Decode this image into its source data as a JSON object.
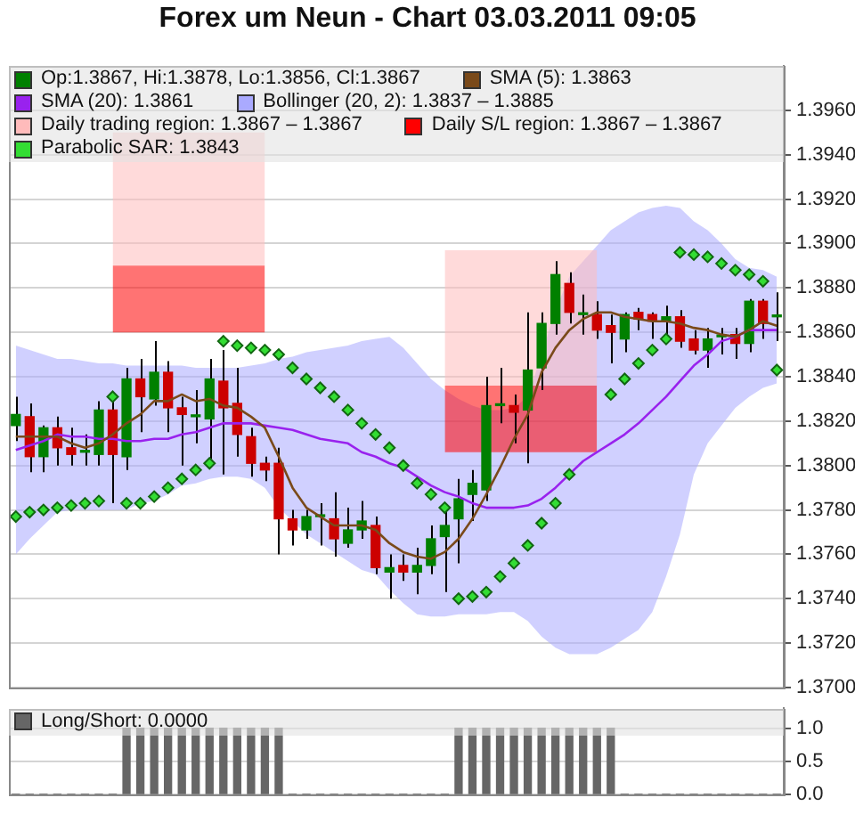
{
  "chart_data": [
    {
      "type": "candlestick",
      "title": "Forex um Neun - Chart 03.03.2011 09:05",
      "categories": [
        null,
        null,
        null,
        null,
        null,
        null,
        null,
        null,
        null,
        null,
        null,
        null,
        null,
        null,
        null,
        null,
        null,
        null,
        null,
        null,
        null,
        null,
        null,
        null,
        null,
        null,
        null,
        null,
        null,
        null,
        null,
        null,
        null,
        null,
        null,
        null,
        null,
        null,
        null,
        null,
        null,
        null,
        null,
        null,
        null,
        null,
        null,
        null,
        null,
        null,
        null,
        null,
        null,
        null,
        null,
        null
      ],
      "series": [
        {
          "name": "Op:1.3867, Hi:1.3878, Lo:1.3856, Cl:1.3867",
          "type": "candlestick",
          "color": "#008000",
          "colors": [
            "#008000",
            "#cc0000",
            "#008000",
            "#cc0000",
            "#cc0000",
            "#008000",
            "#008000",
            "#cc0000",
            "#008000",
            "#cc0000",
            "#008000",
            "#cc0000",
            "#cc0000",
            "#008000",
            "#008000",
            "#cc0000",
            "#cc0000",
            "#cc0000",
            "#cc0000",
            "#cc0000",
            "#cc0000",
            "#008000",
            "#008000",
            "#cc0000",
            "#008000",
            "#008000",
            "#cc0000",
            "#008000",
            "#cc0000",
            "#008000",
            "#008000",
            "#008000",
            "#008000",
            "#008000",
            "#008000",
            "#008000",
            "#cc0000",
            "#008000",
            "#008000",
            "#008000",
            "#cc0000",
            "#008000",
            "#cc0000",
            "#cc0000",
            "#008000",
            "#cc0000",
            "#cc0000",
            "#008000",
            "#cc0000",
            "#cc0000",
            "#008000",
            "#008000",
            "#cc0000",
            "#008000",
            "#cc0000",
            "#008000"
          ],
          "ohlc": [
            [
              1.3818,
              1.3831,
              1.3811,
              1.3823
            ],
            [
              1.3822,
              1.3828,
              1.3797,
              1.3804
            ],
            [
              1.3804,
              1.3818,
              1.3797,
              1.3817
            ],
            [
              1.3817,
              1.3822,
              1.38,
              1.3808
            ],
            [
              1.3808,
              1.3817,
              1.38,
              1.3805
            ],
            [
              1.3806,
              1.3814,
              1.38,
              1.3806
            ],
            [
              1.3805,
              1.3829,
              1.38,
              1.3825
            ],
            [
              1.3825,
              1.3831,
              1.3783,
              1.3805
            ],
            [
              1.3804,
              1.3844,
              1.3798,
              1.3839
            ],
            [
              1.3839,
              1.3848,
              1.3815,
              1.3831
            ],
            [
              1.383,
              1.3856,
              1.3827,
              1.3842
            ],
            [
              1.3842,
              1.3847,
              1.3815,
              1.3826
            ],
            [
              1.3826,
              1.3831,
              1.38,
              1.3823
            ],
            [
              1.3822,
              1.3834,
              1.381,
              1.3822
            ],
            [
              1.3821,
              1.3848,
              1.3803,
              1.3839
            ],
            [
              1.3838,
              1.3852,
              1.3796,
              1.3826
            ],
            [
              1.3828,
              1.3844,
              1.3804,
              1.3814
            ],
            [
              1.3813,
              1.3817,
              1.3795,
              1.3801
            ],
            [
              1.3801,
              1.3804,
              1.3793,
              1.3798
            ],
            [
              1.3801,
              1.3808,
              1.376,
              1.3776
            ],
            [
              1.3776,
              1.378,
              1.3764,
              1.3771
            ],
            [
              1.3771,
              1.378,
              1.3767,
              1.3777
            ],
            [
              1.3777,
              1.3783,
              1.3764,
              1.3777
            ],
            [
              1.3776,
              1.3788,
              1.3759,
              1.3767
            ],
            [
              1.3765,
              1.3781,
              1.3763,
              1.3771
            ],
            [
              1.3771,
              1.3784,
              1.3767,
              1.3775
            ],
            [
              1.3773,
              1.3777,
              1.3751,
              1.3754
            ],
            [
              1.3752,
              1.376,
              1.374,
              1.3754
            ],
            [
              1.3755,
              1.376,
              1.3748,
              1.3752
            ],
            [
              1.3752,
              1.3763,
              1.3742,
              1.3755
            ],
            [
              1.3755,
              1.3773,
              1.3751,
              1.3767
            ],
            [
              1.3768,
              1.3781,
              1.3743,
              1.3773
            ],
            [
              1.3776,
              1.3794,
              1.3756,
              1.3785
            ],
            [
              1.3787,
              1.3798,
              1.3775,
              1.3792
            ],
            [
              1.3789,
              1.384,
              1.3784,
              1.3827
            ],
            [
              1.3827,
              1.3844,
              1.3819,
              1.3827
            ],
            [
              1.3827,
              1.3832,
              1.381,
              1.3824
            ],
            [
              1.3825,
              1.3869,
              1.3801,
              1.3843
            ],
            [
              1.3844,
              1.3869,
              1.3834,
              1.3864
            ],
            [
              1.3864,
              1.3892,
              1.3859,
              1.3886
            ],
            [
              1.3882,
              1.3887,
              1.3864,
              1.3869
            ],
            [
              1.3868,
              1.3877,
              1.3859,
              1.3868
            ],
            [
              1.3868,
              1.3874,
              1.3857,
              1.3861
            ],
            [
              1.3863,
              1.3868,
              1.3846,
              1.386
            ],
            [
              1.3857,
              1.3869,
              1.3851,
              1.3868
            ],
            [
              1.3869,
              1.3871,
              1.3861,
              1.3866
            ],
            [
              1.3868,
              1.3869,
              1.3857,
              1.3865
            ],
            [
              1.3865,
              1.3872,
              1.3858,
              1.3867
            ],
            [
              1.3867,
              1.387,
              1.3853,
              1.3856
            ],
            [
              1.3857,
              1.3861,
              1.385,
              1.3852
            ],
            [
              1.3852,
              1.3862,
              1.3844,
              1.3857
            ],
            [
              1.3858,
              1.3862,
              1.385,
              1.3858
            ],
            [
              1.3859,
              1.3862,
              1.3848,
              1.3855
            ],
            [
              1.3855,
              1.3875,
              1.3851,
              1.3874
            ],
            [
              1.3874,
              1.3875,
              1.3857,
              1.3864
            ],
            [
              1.3867,
              1.3878,
              1.3856,
              1.3867
            ]
          ]
        },
        {
          "name": "SMA (5): 1.3863",
          "type": "line",
          "color": "#7a4a1a",
          "values": [
            1.3813,
            1.3813,
            1.3813,
            1.3813,
            1.381,
            1.3808,
            1.381,
            1.3814,
            1.3819,
            1.3823,
            1.3829,
            1.3829,
            1.3832,
            1.3829,
            1.383,
            1.3827,
            1.3826,
            1.3822,
            1.3817,
            1.3804,
            1.379,
            1.3781,
            1.3777,
            1.3773,
            1.3773,
            1.3773,
            1.3771,
            1.3765,
            1.3761,
            1.3759,
            1.3758,
            1.3761,
            1.3767,
            1.3776,
            1.3787,
            1.3799,
            1.3812,
            1.3823,
            1.3842,
            1.3853,
            1.3861,
            1.3866,
            1.3869,
            1.3869,
            1.3867,
            1.3866,
            1.3865,
            1.3865,
            1.3864,
            1.3862,
            1.3861,
            1.3859,
            1.3858,
            1.3861,
            1.3865,
            1.3863
          ]
        },
        {
          "name": "SMA (20): 1.3861",
          "type": "line",
          "color": "#9922ee",
          "values": [
            1.3807,
            1.3809,
            1.3811,
            1.3814,
            1.3813,
            1.3813,
            1.3812,
            1.3812,
            1.3811,
            1.3811,
            1.3812,
            1.3812,
            1.3814,
            1.3815,
            1.3817,
            1.3819,
            1.3819,
            1.3819,
            1.3818,
            1.3817,
            1.3816,
            1.3814,
            1.3812,
            1.3811,
            1.381,
            1.3806,
            1.3804,
            1.3801,
            1.3799,
            1.3795,
            1.3791,
            1.3788,
            1.3786,
            1.3783,
            1.3781,
            1.3781,
            1.3781,
            1.3782,
            1.3785,
            1.379,
            1.3796,
            1.3802,
            1.3806,
            1.381,
            1.3814,
            1.3819,
            1.3825,
            1.3831,
            1.3838,
            1.3845,
            1.385,
            1.3856,
            1.3858,
            1.3861,
            1.3861,
            1.3861
          ]
        },
        {
          "name": "Bollinger (20, 2): 1.3837 – 1.3885",
          "type": "area",
          "color": "#aaaaff",
          "values": [
            null,
            null,
            null,
            null,
            null,
            null,
            null,
            null,
            null,
            null,
            null,
            null,
            null,
            null,
            null,
            null,
            null,
            null,
            null,
            null,
            null,
            null,
            null,
            null,
            null,
            null,
            null,
            null,
            null,
            null,
            null,
            null,
            null,
            null,
            null,
            null,
            null,
            null,
            null,
            null,
            null,
            null,
            null,
            null,
            null,
            null,
            null,
            null,
            null,
            null,
            null,
            null,
            null,
            null,
            null,
            null
          ],
          "upper": [
            1.3854,
            1.3852,
            1.385,
            1.3848,
            1.3848,
            1.3847,
            1.3846,
            1.3846,
            1.3845,
            1.3845,
            1.3845,
            1.3845,
            1.3845,
            1.3844,
            1.3844,
            1.3844,
            1.3844,
            1.3845,
            1.3846,
            1.3848,
            1.3849,
            1.3851,
            1.3852,
            1.3853,
            1.3854,
            1.3856,
            1.3857,
            1.3858,
            1.3853,
            1.3846,
            1.3839,
            1.3834,
            1.383,
            1.3827,
            1.3825,
            1.3825,
            1.3826,
            1.3831,
            1.385,
            1.387,
            1.3885,
            1.3892,
            1.3899,
            1.3906,
            1.391,
            1.3914,
            1.3916,
            1.3917,
            1.3916,
            1.391,
            1.3906,
            1.39,
            1.3893,
            1.3889,
            1.3888,
            1.3885
          ],
          "lower": [
            1.376,
            1.3767,
            1.3773,
            1.3779,
            1.378,
            1.378,
            1.378,
            1.378,
            1.378,
            1.3783,
            1.3784,
            1.3787,
            1.3791,
            1.3792,
            1.3794,
            1.3795,
            1.3795,
            1.3794,
            1.379,
            1.3781,
            1.3775,
            1.3769,
            1.3765,
            1.3761,
            1.3757,
            1.3753,
            1.3751,
            1.3744,
            1.3738,
            1.3733,
            1.3732,
            1.3732,
            1.3733,
            1.3733,
            1.3733,
            1.3734,
            1.3734,
            1.373,
            1.3723,
            1.3718,
            1.3715,
            1.3715,
            1.3715,
            1.3718,
            1.3722,
            1.3726,
            1.3734,
            1.375,
            1.3769,
            1.3796,
            1.381,
            1.3818,
            1.3826,
            1.3831,
            1.3835,
            1.3837
          ]
        },
        {
          "name": "Daily trading region: 1.3867 – 1.3867",
          "type": "area",
          "color": "#ffbbbb",
          "values": [
            null,
            null,
            null,
            null,
            null,
            null,
            null,
            null,
            null,
            null,
            null,
            null,
            null,
            null,
            null,
            null,
            null,
            null,
            null,
            null,
            null,
            null,
            null,
            null,
            null,
            null,
            null,
            null,
            null,
            null,
            null,
            null,
            null,
            null,
            null,
            null,
            null,
            null,
            null,
            null,
            null,
            null,
            null,
            null,
            null,
            null,
            null,
            null,
            null,
            null,
            null,
            null,
            null,
            null,
            null,
            null
          ],
          "upper": [
            null,
            null,
            null,
            null,
            null,
            null,
            null,
            1.395,
            1.395,
            1.395,
            1.395,
            1.395,
            1.395,
            1.395,
            1.395,
            1.395,
            1.395,
            1.395,
            1.395,
            null,
            null,
            null,
            null,
            null,
            null,
            null,
            null,
            null,
            null,
            null,
            null,
            1.3897,
            1.3897,
            1.3897,
            1.3897,
            1.3897,
            1.3897,
            1.3897,
            1.3897,
            1.3897,
            1.3897,
            1.3897,
            1.3897,
            null,
            null,
            null,
            null,
            null,
            null,
            null,
            null,
            null,
            null,
            null,
            null,
            null
          ],
          "lower": [
            null,
            null,
            null,
            null,
            null,
            null,
            null,
            1.389,
            1.389,
            1.389,
            1.389,
            1.389,
            1.389,
            1.389,
            1.389,
            1.389,
            1.389,
            1.389,
            1.389,
            null,
            null,
            null,
            null,
            null,
            null,
            null,
            null,
            null,
            null,
            null,
            null,
            1.3836,
            1.3836,
            1.3836,
            1.3836,
            1.3836,
            1.3836,
            1.3836,
            1.3836,
            1.3836,
            1.3836,
            1.3836,
            1.3836,
            null,
            null,
            null,
            null,
            null,
            null,
            null,
            null,
            null,
            null,
            null,
            null,
            null
          ]
        },
        {
          "name": "Daily S/L region: 1.3867 – 1.3867",
          "type": "area",
          "color": "#ff0000",
          "values": [
            null,
            null,
            null,
            null,
            null,
            null,
            null,
            null,
            null,
            null,
            null,
            null,
            null,
            null,
            null,
            null,
            null,
            null,
            null,
            null,
            null,
            null,
            null,
            null,
            null,
            null,
            null,
            null,
            null,
            null,
            null,
            null,
            null,
            null,
            null,
            null,
            null,
            null,
            null,
            null,
            null,
            null,
            null,
            null,
            null,
            null,
            null,
            null,
            null,
            null,
            null,
            null,
            null,
            null,
            null,
            null
          ],
          "upper": [
            null,
            null,
            null,
            null,
            null,
            null,
            null,
            1.389,
            1.389,
            1.389,
            1.389,
            1.389,
            1.389,
            1.389,
            1.389,
            1.389,
            1.389,
            1.389,
            1.389,
            null,
            null,
            null,
            null,
            null,
            null,
            null,
            null,
            null,
            null,
            null,
            null,
            1.3836,
            1.3836,
            1.3836,
            1.3836,
            1.3836,
            1.3836,
            1.3836,
            1.3836,
            1.3836,
            1.3836,
            1.3836,
            1.3836,
            null,
            null,
            null,
            null,
            null,
            null,
            null,
            null,
            null,
            null,
            null,
            null,
            null
          ],
          "lower": [
            null,
            null,
            null,
            null,
            null,
            null,
            null,
            1.386,
            1.386,
            1.386,
            1.386,
            1.386,
            1.386,
            1.386,
            1.386,
            1.386,
            1.386,
            1.386,
            1.386,
            null,
            null,
            null,
            null,
            null,
            null,
            null,
            null,
            null,
            null,
            null,
            null,
            1.3806,
            1.3806,
            1.3806,
            1.3806,
            1.3806,
            1.3806,
            1.3806,
            1.3806,
            1.3806,
            1.3806,
            1.3806,
            1.3806,
            null,
            null,
            null,
            null,
            null,
            null,
            null,
            null,
            null,
            null,
            null,
            null,
            null
          ]
        },
        {
          "name": "Parabolic SAR: 1.3843",
          "type": "scatter",
          "color": "#33dd33",
          "marker": "diamond",
          "values": [
            1.3777,
            1.3779,
            1.378,
            1.3781,
            1.3782,
            1.3783,
            1.3784,
            1.3831,
            1.3783,
            1.3783,
            1.3786,
            1.379,
            1.3794,
            1.3798,
            1.3801,
            1.3856,
            1.3854,
            1.3853,
            1.3852,
            1.385,
            1.3844,
            1.3839,
            1.3835,
            1.3831,
            1.3825,
            1.3819,
            1.3814,
            1.3808,
            1.38,
            1.3792,
            1.3787,
            1.3781,
            1.374,
            1.3741,
            1.3743,
            1.375,
            1.3756,
            1.3764,
            1.3774,
            1.3783,
            1.3796,
            null,
            null,
            1.3832,
            1.3839,
            1.3846,
            1.3852,
            1.3857,
            1.3896,
            1.3895,
            1.3894,
            1.3891,
            1.3888,
            1.3886,
            1.3883,
            1.3843
          ]
        }
      ],
      "ylim": [
        1.37,
        1.398
      ],
      "yticks": [
        {
          "value": 1.37,
          "label": "1.3700"
        },
        {
          "value": 1.372,
          "label": "1.3720"
        },
        {
          "value": 1.374,
          "label": "1.3740"
        },
        {
          "value": 1.376,
          "label": "1.3760"
        },
        {
          "value": 1.378,
          "label": "1.3780"
        },
        {
          "value": 1.38,
          "label": "1.3800"
        },
        {
          "value": 1.382,
          "label": "1.3820"
        },
        {
          "value": 1.384,
          "label": "1.3840"
        },
        {
          "value": 1.386,
          "label": "1.3860"
        },
        {
          "value": 1.388,
          "label": "1.3880"
        },
        {
          "value": 1.39,
          "label": "1.3900"
        },
        {
          "value": 1.392,
          "label": "1.3920"
        },
        {
          "value": 1.394,
          "label": "1.3940"
        },
        {
          "value": 1.396,
          "label": "1.3960"
        }
      ],
      "grid": "y",
      "legend": "top left",
      "tick_labels": "y"
    },
    {
      "type": "bar",
      "categories": [
        null,
        null,
        null,
        null,
        null,
        null,
        null,
        null,
        null,
        null,
        null,
        null,
        null,
        null,
        null,
        null,
        null,
        null,
        null,
        null,
        null,
        null,
        null,
        null,
        null,
        null,
        null,
        null,
        null,
        null,
        null,
        null,
        null,
        null,
        null,
        null,
        null,
        null,
        null,
        null,
        null,
        null,
        null,
        null,
        null,
        null,
        null,
        null,
        null,
        null,
        null,
        null,
        null,
        null,
        null,
        null
      ],
      "series": [
        {
          "name": "Long/Short: 0.0000",
          "color": "#666666",
          "values": [
            0,
            0,
            0,
            0,
            0,
            0,
            0,
            0,
            1,
            1,
            1,
            1,
            1,
            1,
            1,
            1,
            1,
            1,
            1,
            1,
            0,
            0,
            0,
            0,
            0,
            0,
            0,
            0,
            0,
            0,
            0,
            0,
            1,
            1,
            1,
            1,
            1,
            1,
            1,
            1,
            1,
            1,
            1,
            1,
            0,
            0,
            0,
            0,
            0,
            0,
            0,
            0,
            0,
            0,
            0,
            0
          ]
        }
      ],
      "ylim": [
        0,
        1.3
      ],
      "yticks": [
        {
          "value": 0,
          "label": "0.0"
        },
        {
          "value": 0.5,
          "label": "0.5"
        },
        {
          "value": 1,
          "label": "1.0"
        }
      ],
      "grid": "y",
      "legend": "top left",
      "tick_labels": "y"
    }
  ]
}
